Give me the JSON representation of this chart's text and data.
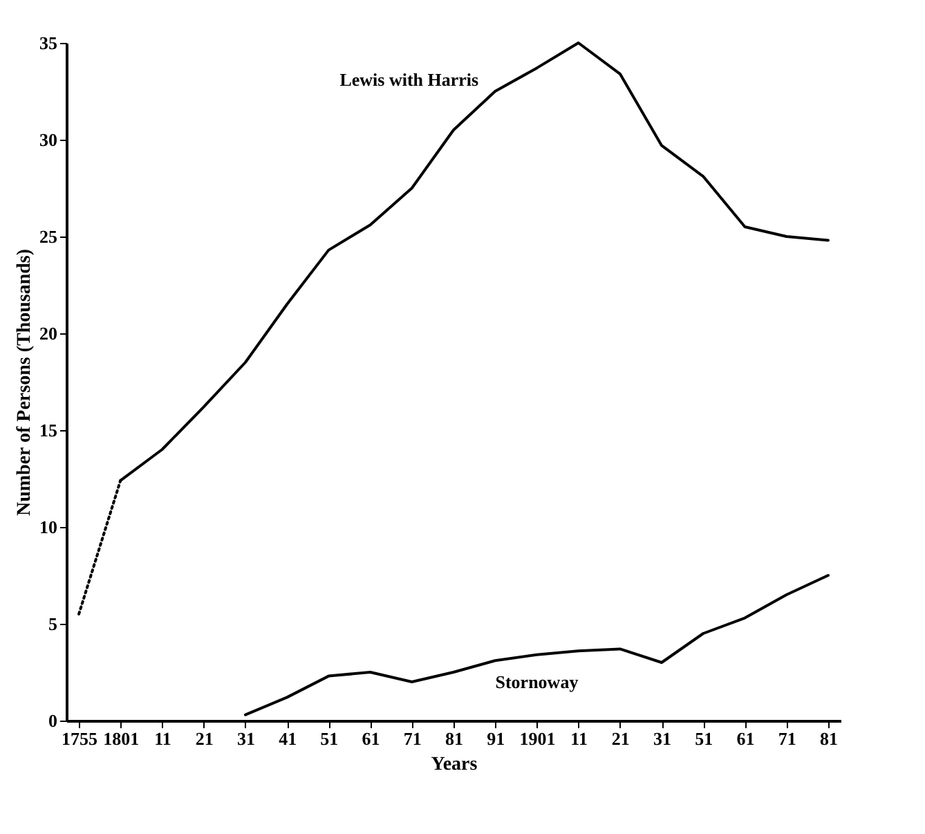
{
  "chart_data": {
    "type": "line",
    "xlabel": "Years",
    "ylabel": "Number of Persons (Thousands)",
    "categories": [
      "1755",
      "1801",
      "11",
      "21",
      "31",
      "41",
      "51",
      "61",
      "71",
      "81",
      "91",
      "1901",
      "11",
      "21",
      "31",
      "51",
      "61",
      "71",
      "81"
    ],
    "series": [
      {
        "color": "#000000",
        "line_style": "dotted",
        "values": [
          5.5,
          12.4,
          null,
          null,
          null,
          null,
          null,
          null,
          null,
          null,
          null,
          null,
          null,
          null,
          null,
          null,
          null,
          null,
          null
        ]
      },
      {
        "name": "Lewis with Harris",
        "color": "#000000",
        "line_style": "solid",
        "values": [
          null,
          12.4,
          14.0,
          16.2,
          18.5,
          21.5,
          24.3,
          25.6,
          27.5,
          30.5,
          32.5,
          33.7,
          35.0,
          33.4,
          29.7,
          28.1,
          25.5,
          25.0,
          24.8
        ]
      },
      {
        "name": "Stornoway",
        "color": "#000000",
        "line_style": "solid",
        "values": [
          null,
          null,
          null,
          null,
          0.3,
          1.2,
          2.3,
          2.5,
          2.0,
          2.5,
          3.1,
          3.4,
          3.6,
          3.7,
          3.0,
          4.5,
          5.3,
          6.5,
          7.5
        ]
      }
    ],
    "ylim": [
      0,
      35
    ],
    "yticks": [
      0,
      5,
      10,
      15,
      20,
      25,
      30,
      35
    ]
  }
}
